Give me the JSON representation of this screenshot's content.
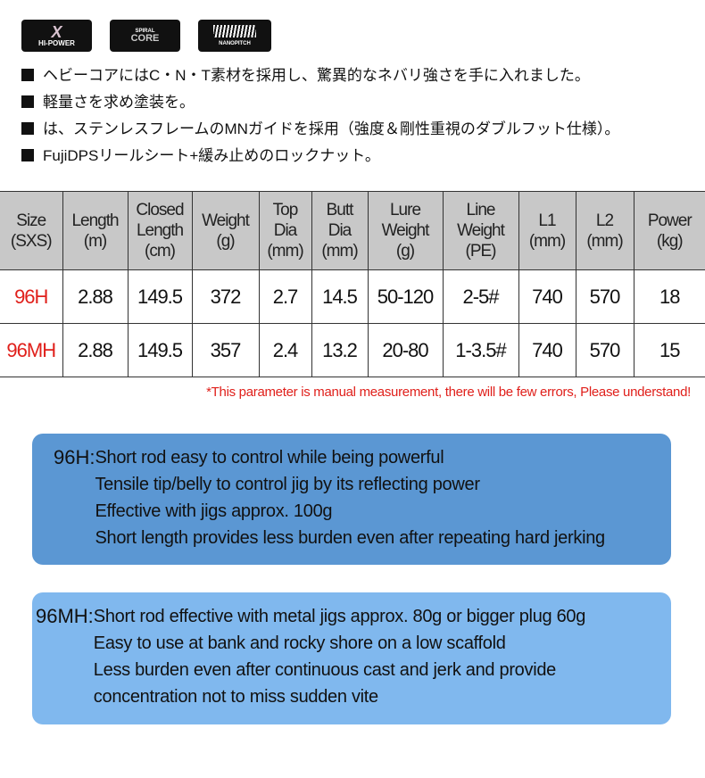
{
  "logos": [
    {
      "name": "HI-POWER X",
      "text": "HI-POWER"
    },
    {
      "name": "Spiral X Core",
      "text": "CORE",
      "sub": "SPIRAL"
    },
    {
      "name": "Nanopitch",
      "text": "NANOPITCH"
    }
  ],
  "bullets": [
    "ヘビーコアにはC・N・T素材を採用し、驚異的なネバリ強さを手に入れました。",
    "軽量さを求め塗装を。",
    "は、ステンレスフレームのMNガイドを採用（強度＆剛性重視のダブルフット仕様）。",
    "FujiDPSリールシート+緩み止めのロックナット。"
  ],
  "table": {
    "headers": [
      [
        "Size",
        "(SXS)"
      ],
      [
        "Length",
        "(m)"
      ],
      [
        "Closed",
        "Length",
        "(cm)"
      ],
      [
        "Weight",
        "(g)"
      ],
      [
        "Top",
        "Dia",
        "(mm)"
      ],
      [
        "Butt",
        "Dia",
        "(mm)"
      ],
      [
        "Lure",
        "Weight",
        "(g)"
      ],
      [
        "Line",
        "Weight",
        "(PE)"
      ],
      [
        "L1",
        "(mm)"
      ],
      [
        "L2",
        "(mm)"
      ],
      [
        "Power",
        "(kg)"
      ]
    ],
    "rows": [
      [
        "96H",
        "2.88",
        "149.5",
        "372",
        "2.7",
        "14.5",
        "50-120",
        "2-5#",
        "740",
        "570",
        "18"
      ],
      [
        "96MH",
        "2.88",
        "149.5",
        "357",
        "2.4",
        "13.2",
        "20-80",
        "1-3.5#",
        "740",
        "570",
        "15"
      ]
    ]
  },
  "note": "*This parameter is manual measurement, there will be few errors, Please understand!",
  "descriptions": [
    {
      "label": "96H:",
      "lines": [
        "Short rod easy to control while being powerful",
        "Tensile tip/belly to control jig by its reflecting power",
        "Effective with jigs approx. 100g",
        "Short length provides less burden even after repeating hard jerking"
      ]
    },
    {
      "label": "96MH:",
      "lines": [
        "Short rod effective with metal jigs approx. 80g or bigger plug 60g",
        "Easy to use at bank and rocky shore on a low scaffold",
        "Less burden even after continuous cast and jerk and provide",
        "concentration not to miss sudden vite"
      ]
    }
  ],
  "colors": {
    "accent_red": "#e0201b",
    "header_gray": "#c8c8c8",
    "box1": "#5b97d3",
    "box2": "#80b8ee"
  }
}
